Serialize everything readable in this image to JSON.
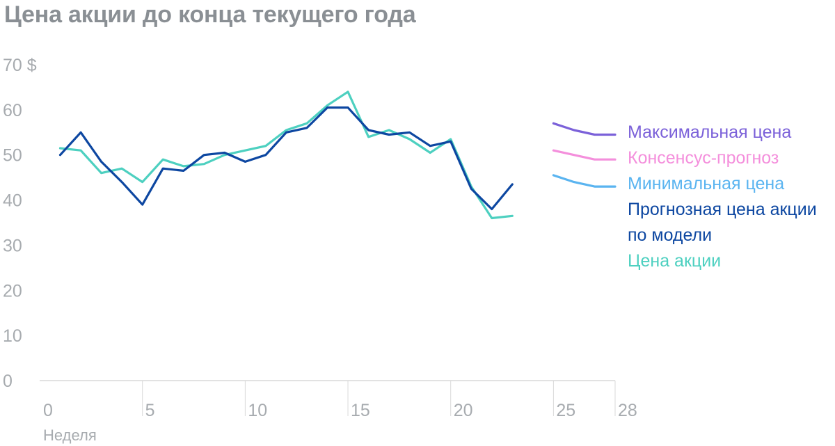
{
  "chart_data": {
    "type": "line",
    "title": "Цена акции до конца текущего года",
    "xlabel": "Неделя",
    "ylabel": "",
    "y_unit_label": "70 $",
    "xlim": [
      0,
      28
    ],
    "ylim": [
      0,
      70
    ],
    "x_ticks": [
      0,
      5,
      10,
      15,
      20,
      25,
      28
    ],
    "x_tick_labels": [
      "0",
      "5",
      "10",
      "15",
      "20",
      "25",
      "28"
    ],
    "y_ticks": [
      0,
      10,
      20,
      30,
      40,
      50,
      60,
      70
    ],
    "y_tick_labels": [
      "0",
      "10",
      "20",
      "30",
      "40",
      "50",
      "60",
      "70 $"
    ],
    "vertical_gridlines": [
      5,
      10,
      15,
      20,
      25,
      28
    ],
    "legend_position": "right",
    "series": [
      {
        "name": "Цена акции",
        "color": "#4dd0c0",
        "x": [
          1,
          2,
          3,
          4,
          5,
          6,
          7,
          8,
          9,
          10,
          11,
          12,
          13,
          14,
          15,
          16,
          17,
          18,
          19,
          20,
          21,
          22,
          23
        ],
        "values": [
          51.5,
          51,
          46,
          47,
          44,
          49,
          47.5,
          48,
          50,
          51,
          52,
          55.5,
          57,
          61,
          64,
          54,
          55.5,
          53.5,
          50.5,
          53.5,
          43,
          36,
          36.5
        ]
      },
      {
        "name": "Прогнозная цена акции по модели",
        "color": "#0d47a1",
        "x": [
          1,
          2,
          3,
          4,
          5,
          6,
          7,
          8,
          9,
          10,
          11,
          12,
          13,
          14,
          15,
          16,
          17,
          18,
          19,
          20,
          21,
          22,
          23
        ],
        "values": [
          50,
          55,
          48.5,
          44,
          39,
          47,
          46.5,
          50,
          50.5,
          48.5,
          50,
          55,
          56,
          60.5,
          60.5,
          55.5,
          54.5,
          55,
          52,
          53,
          42.5,
          38,
          43.5
        ]
      },
      {
        "name": "Максимальная цена",
        "color": "#7b61d9",
        "x": [
          25,
          26,
          27,
          28
        ],
        "values": [
          57,
          55.5,
          54.5,
          54.5
        ]
      },
      {
        "name": "Консенсус-прогноз",
        "color": "#f48fdc",
        "x": [
          25,
          26,
          27,
          28
        ],
        "values": [
          51,
          50,
          49,
          49
        ]
      },
      {
        "name": "Минимальная цена",
        "color": "#5ab4f0",
        "x": [
          25,
          26,
          27,
          28
        ],
        "values": [
          45.5,
          44,
          43,
          43
        ]
      }
    ],
    "legend": [
      {
        "lines": [
          "Максимальная цена"
        ],
        "color": "#7b61d9"
      },
      {
        "lines": [
          "Консенсус-прогноз"
        ],
        "color": "#f48fdc"
      },
      {
        "lines": [
          "Минимальная цена"
        ],
        "color": "#5ab4f0"
      },
      {
        "lines": [
          "Прогнозная цена акции",
          "по модели"
        ],
        "color": "#0d47a1"
      },
      {
        "lines": [
          "Цена акции"
        ],
        "color": "#4dd0c0"
      }
    ]
  }
}
